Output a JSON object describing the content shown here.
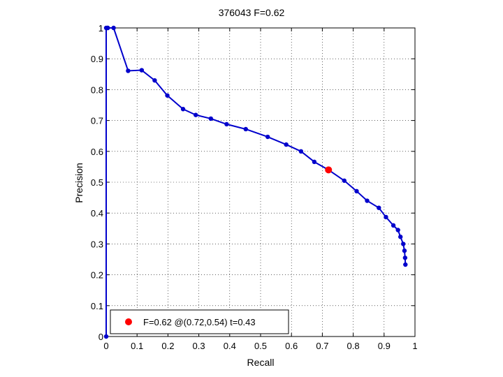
{
  "chart_data": {
    "type": "line",
    "title": "376043 F=0.62",
    "xlabel": "Recall",
    "ylabel": "Precision",
    "xlim": [
      0,
      1
    ],
    "ylim": [
      0,
      1
    ],
    "grid": true,
    "x_ticks": [
      "0",
      "0.1",
      "0.2",
      "0.3",
      "0.4",
      "0.5",
      "0.6",
      "0.7",
      "0.8",
      "0.9",
      "1"
    ],
    "y_ticks": [
      "0",
      "0.1",
      "0.2",
      "0.3",
      "0.4",
      "0.5",
      "0.6",
      "0.7",
      "0.8",
      "0.9",
      "1"
    ],
    "series": [
      {
        "color": "#0000cc",
        "x": [
          0,
          0,
          0.005,
          0.005,
          0.024,
          0.071,
          0.115,
          0.157,
          0.198,
          0.249,
          0.29,
          0.339,
          0.39,
          0.452,
          0.523,
          0.583,
          0.631,
          0.674,
          0.72,
          0.771,
          0.811,
          0.845,
          0.883,
          0.906,
          0.93,
          0.945,
          0.953,
          0.962,
          0.966,
          0.968,
          0.969
        ],
        "y": [
          0,
          1,
          1,
          1,
          1,
          0.861,
          0.863,
          0.83,
          0.781,
          0.737,
          0.718,
          0.706,
          0.688,
          0.672,
          0.647,
          0.622,
          0.6,
          0.566,
          0.54,
          0.505,
          0.471,
          0.44,
          0.417,
          0.387,
          0.36,
          0.345,
          0.323,
          0.3,
          0.278,
          0.255,
          0.233
        ]
      }
    ],
    "highlight": {
      "x": 0.72,
      "y": 0.54,
      "color": "#ff0000",
      "label": "F=0.62 @(0.72,0.54) t=0.43"
    },
    "legend": {
      "position": "bottom-left",
      "text": "F=0.62 @(0.72,0.54) t=0.43"
    }
  }
}
